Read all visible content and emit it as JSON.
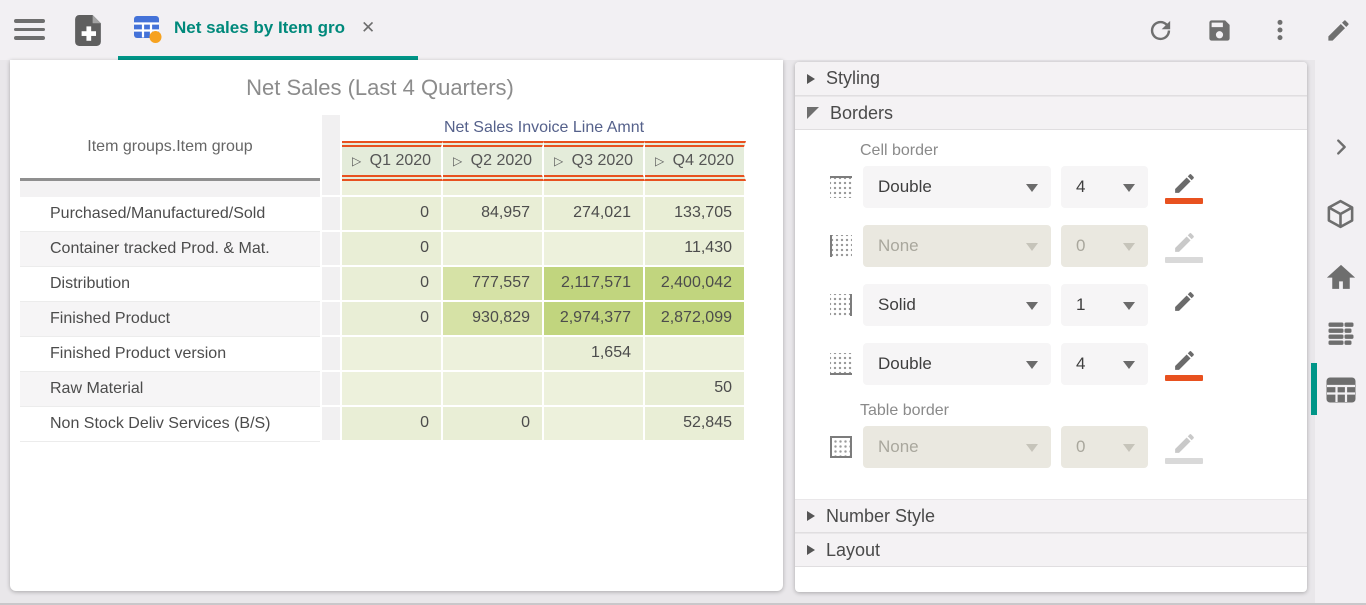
{
  "app": {
    "page_bg": "#e9e7ea",
    "accent_teal": "#009688",
    "accent_orange": "#e8511f"
  },
  "toolbar": {
    "tab": {
      "title": "Net sales by Item gro",
      "close_glyph": "✕"
    },
    "icons": [
      "menu-icon",
      "new-report-icon",
      "report-tab-icon",
      "refresh-icon",
      "save-icon",
      "kebab-menu-icon",
      "edit-icon"
    ]
  },
  "pivot": {
    "title": "Net Sales (Last 4 Quarters)",
    "row_dimension_header": "Item groups.Item group",
    "measure_header": "Net Sales Invoice Line Amnt",
    "expand_glyph": "▷",
    "columns": [
      "Q1 2020",
      "Q2 2020",
      "Q3 2020",
      "Q4 2020"
    ],
    "rows": [
      {
        "label": "Purchased/Manufactured/Sold",
        "values": [
          0,
          84957,
          274021,
          133705
        ]
      },
      {
        "label": "Container tracked Prod. & Mat.",
        "values": [
          0,
          null,
          null,
          11430
        ]
      },
      {
        "label": "Distribution",
        "values": [
          0,
          777557,
          2117571,
          2400042
        ]
      },
      {
        "label": "Finished Product",
        "values": [
          0,
          930829,
          2974377,
          2872099
        ]
      },
      {
        "label": "Finished Product version",
        "values": [
          null,
          null,
          1654,
          null
        ]
      },
      {
        "label": "Raw Material",
        "values": [
          null,
          null,
          null,
          50
        ]
      },
      {
        "label": "Non Stock Deliv Services (B/S)",
        "values": [
          0,
          0,
          null,
          52845
        ]
      }
    ],
    "heat_colors": {
      "lv0": "#edf1dc",
      "lv1": "#e9eed6",
      "lv2": "#d6e2a6",
      "lv3": "#c1d57e"
    },
    "header_fill": "#e4ecda",
    "header_border_color": "#e8511f"
  },
  "panel": {
    "sections": [
      {
        "label": "Styling",
        "expanded": false
      },
      {
        "label": "Borders",
        "expanded": true
      },
      {
        "label": "Number Style",
        "expanded": false
      },
      {
        "label": "Layout",
        "expanded": false
      }
    ],
    "cell_border": {
      "label": "Cell border",
      "rows": [
        {
          "side": "top",
          "style": "Double",
          "width": "4",
          "swatch": "#e8511f",
          "disabled": false
        },
        {
          "side": "left",
          "style": "None",
          "width": "0",
          "swatch": null,
          "disabled": true
        },
        {
          "side": "right",
          "style": "Solid",
          "width": "1",
          "swatch": null,
          "disabled": false
        },
        {
          "side": "bottom",
          "style": "Double",
          "width": "4",
          "swatch": "#e8511f",
          "disabled": false
        }
      ]
    },
    "table_border": {
      "label": "Table border",
      "rows": [
        {
          "side": "outer",
          "style": "None",
          "width": "0",
          "swatch": null,
          "disabled": true
        }
      ]
    }
  },
  "right_rail": {
    "icons": [
      "collapse-chevron-icon",
      "cube-icon",
      "home-icon",
      "report-list-icon",
      "table-grid-icon"
    ],
    "active": "table-grid-icon"
  }
}
